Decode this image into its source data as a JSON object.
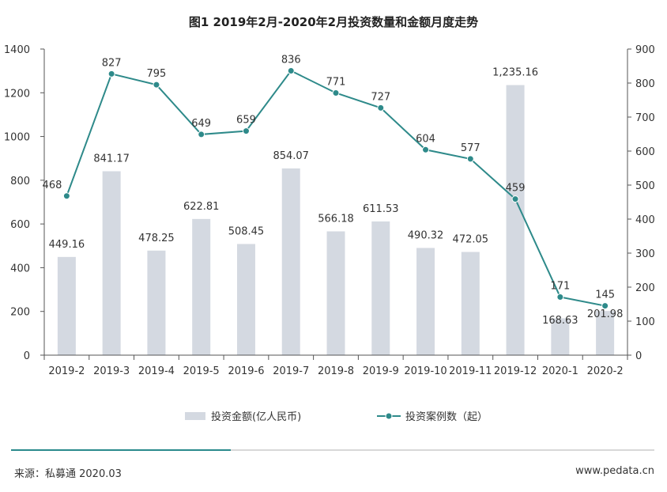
{
  "colors": {
    "bar": "#d4d9e1",
    "line": "#2e8a8a",
    "marker_fill": "#2e8a8a",
    "marker_stroke": "#ffffff",
    "axis": "#555555"
  },
  "chart_data": {
    "type": "bar+line",
    "title": "图1  2019年2月-2020年2月投资数量和金额月度走势",
    "categories": [
      "2019-2",
      "2019-3",
      "2019-4",
      "2019-5",
      "2019-6",
      "2019-7",
      "2019-8",
      "2019-9",
      "2019-10",
      "2019-11",
      "2019-12",
      "2020-1",
      "2020-2"
    ],
    "series": [
      {
        "name": "投资金额(亿人民币)",
        "type": "bar",
        "axis": "left",
        "values": [
          449.16,
          841.17,
          478.25,
          622.81,
          508.45,
          854.07,
          566.18,
          611.53,
          490.32,
          472.05,
          1235.16,
          168.63,
          201.98
        ],
        "labels": [
          "449.16",
          "841.17",
          "478.25",
          "622.81",
          "508.45",
          "854.07",
          "566.18",
          "611.53",
          "490.32",
          "472.05",
          "1,235.16",
          "168.63",
          "201.98"
        ]
      },
      {
        "name": "投资案例数（起）",
        "type": "line",
        "axis": "right",
        "values": [
          468,
          827,
          795,
          649,
          659,
          836,
          771,
          727,
          604,
          577,
          459,
          171,
          145
        ],
        "labels": [
          "468",
          "827",
          "795",
          "649",
          "659",
          "836",
          "771",
          "727",
          "604",
          "577",
          "459",
          "171",
          "145"
        ]
      }
    ],
    "ylim_left": [
      0,
      1400
    ],
    "yticks_left": [
      "0",
      "200",
      "400",
      "600",
      "800",
      "1000",
      "1200",
      "1400"
    ],
    "ylim_right": [
      0,
      900
    ],
    "yticks_right": [
      "0",
      "100",
      "200",
      "300",
      "400",
      "500",
      "600",
      "700",
      "800",
      "900"
    ],
    "legend_position": "bottom",
    "grid": false
  },
  "footer": {
    "source": "来源：私募通 2020.03",
    "website": "www.pedata.cn"
  }
}
